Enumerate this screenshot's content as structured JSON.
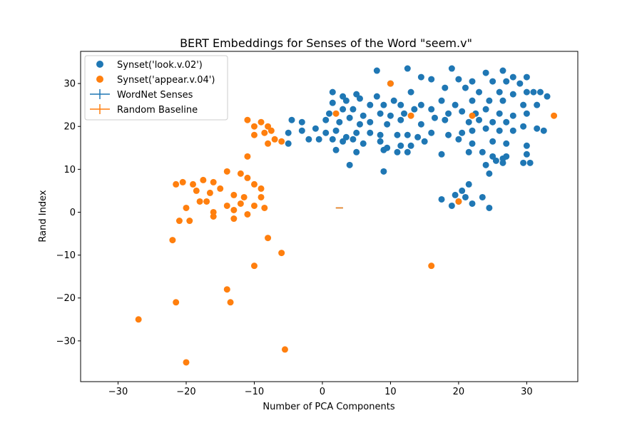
{
  "chart_data": {
    "type": "scatter",
    "title": "BERT Embeddings for Senses of the Word \"seem.v\"",
    "xlabel": "Number of PCA Components",
    "ylabel": "Rand Index",
    "xlim": [
      -35.5,
      37.5
    ],
    "ylim": [
      -39.5,
      37.5
    ],
    "xticks": [
      -30,
      -20,
      -10,
      0,
      10,
      20,
      30
    ],
    "yticks": [
      -30,
      -20,
      -10,
      0,
      10,
      20,
      30
    ],
    "xtick_labels": [
      "−30",
      "−20",
      "−10",
      "0",
      "10",
      "20",
      "30"
    ],
    "ytick_labels": [
      "−30",
      "−20",
      "−10",
      "0",
      "10",
      "20",
      "30"
    ],
    "grid": false,
    "legend_position": "upper-left",
    "colors": {
      "blue": "#1f77b4",
      "orange": "#ff7f0e"
    },
    "series": [
      {
        "name": "Synset('look.v.02')",
        "kind": "scatter",
        "color": "#1f77b4",
        "points": [
          [
            8,
            33
          ],
          [
            12.5,
            33.5
          ],
          [
            19,
            33.5
          ],
          [
            24,
            32.5
          ],
          [
            26.5,
            33
          ],
          [
            28,
            31.5
          ],
          [
            30,
            31.5
          ],
          [
            10,
            30
          ],
          [
            14.5,
            31.5
          ],
          [
            16,
            31
          ],
          [
            20,
            31
          ],
          [
            22,
            30.5
          ],
          [
            25,
            30.5
          ],
          [
            27,
            30.5
          ],
          [
            29,
            30
          ],
          [
            31,
            28
          ],
          [
            32,
            28
          ],
          [
            33,
            27
          ],
          [
            1.5,
            28
          ],
          [
            3,
            27
          ],
          [
            5,
            27.5
          ],
          [
            8,
            27
          ],
          [
            13,
            28
          ],
          [
            18,
            29
          ],
          [
            21,
            29
          ],
          [
            23,
            28
          ],
          [
            26,
            28
          ],
          [
            28,
            27.5
          ],
          [
            30,
            28
          ],
          [
            1.5,
            25.5
          ],
          [
            3.5,
            26
          ],
          [
            5.5,
            26.5
          ],
          [
            7,
            25
          ],
          [
            9,
            25
          ],
          [
            10.5,
            26
          ],
          [
            11.5,
            25
          ],
          [
            14.5,
            25
          ],
          [
            17.5,
            26
          ],
          [
            19.5,
            25
          ],
          [
            22,
            26
          ],
          [
            24.5,
            26
          ],
          [
            26.5,
            26
          ],
          [
            29.5,
            25
          ],
          [
            31.5,
            25
          ],
          [
            1,
            23
          ],
          [
            3,
            24
          ],
          [
            4.5,
            24
          ],
          [
            6,
            22.5
          ],
          [
            8.5,
            23
          ],
          [
            10,
            22.5
          ],
          [
            12,
            23
          ],
          [
            13.5,
            24
          ],
          [
            16,
            24
          ],
          [
            18.5,
            23
          ],
          [
            20.5,
            23.5
          ],
          [
            22.5,
            23
          ],
          [
            24,
            24
          ],
          [
            26,
            23
          ],
          [
            28,
            22.5
          ],
          [
            30,
            23
          ],
          [
            -3,
            21
          ],
          [
            0.5,
            21.5
          ],
          [
            2.5,
            21
          ],
          [
            4,
            22
          ],
          [
            5.5,
            20.5
          ],
          [
            7,
            21
          ],
          [
            9.5,
            20.5
          ],
          [
            11.5,
            21.5
          ],
          [
            14.5,
            20.5
          ],
          [
            16.5,
            22
          ],
          [
            18,
            21.5
          ],
          [
            21.5,
            21
          ],
          [
            23,
            21.5
          ],
          [
            25,
            21
          ],
          [
            27,
            21
          ],
          [
            29.5,
            20
          ],
          [
            31.5,
            19.5
          ],
          [
            -3,
            19
          ],
          [
            -1,
            19.5
          ],
          [
            0.5,
            18.5
          ],
          [
            2,
            19
          ],
          [
            3.5,
            17.5
          ],
          [
            5,
            18.5
          ],
          [
            7,
            18.5
          ],
          [
            8.5,
            18
          ],
          [
            11,
            18
          ],
          [
            12.5,
            18
          ],
          [
            14,
            17.5
          ],
          [
            16,
            18.5
          ],
          [
            18.5,
            18
          ],
          [
            20.5,
            18.5
          ],
          [
            22,
            19
          ],
          [
            24,
            19.5
          ],
          [
            26,
            19
          ],
          [
            28,
            19
          ],
          [
            32.5,
            19
          ],
          [
            -2,
            17
          ],
          [
            -0.5,
            17
          ],
          [
            1.5,
            17
          ],
          [
            3,
            16.5
          ],
          [
            4.5,
            17
          ],
          [
            6,
            16
          ],
          [
            8.5,
            16.5
          ],
          [
            9.5,
            15
          ],
          [
            11.5,
            15.5
          ],
          [
            13,
            15.5
          ],
          [
            15,
            16.5
          ],
          [
            20,
            17
          ],
          [
            22,
            16
          ],
          [
            25,
            16.5
          ],
          [
            27,
            16
          ],
          [
            30,
            15.5
          ],
          [
            2,
            14.5
          ],
          [
            5,
            14
          ],
          [
            9,
            14.5
          ],
          [
            11,
            14
          ],
          [
            12.5,
            14
          ],
          [
            17.5,
            13.5
          ],
          [
            21.5,
            14
          ],
          [
            23.5,
            14
          ],
          [
            25,
            13
          ],
          [
            27,
            13
          ],
          [
            30,
            13.5
          ],
          [
            4,
            11
          ],
          [
            9,
            9.5
          ],
          [
            24,
            11
          ],
          [
            25.5,
            12
          ],
          [
            26.5,
            11.5
          ],
          [
            29.5,
            11.5
          ],
          [
            30.5,
            11.5
          ],
          [
            24.5,
            9
          ],
          [
            26.5,
            12.5
          ],
          [
            -4.5,
            21.5
          ],
          [
            -5,
            18.5
          ],
          [
            -5,
            16
          ],
          [
            21.5,
            6.5
          ],
          [
            20.5,
            5
          ],
          [
            19.5,
            4
          ],
          [
            21,
            3.5
          ],
          [
            20,
            2.5
          ],
          [
            19,
            1.5
          ],
          [
            22,
            2
          ],
          [
            23.5,
            3.5
          ],
          [
            17.5,
            3
          ],
          [
            24.5,
            1
          ]
        ]
      },
      {
        "name": "Synset('appear.v.04')",
        "kind": "scatter",
        "color": "#ff7f0e",
        "points": [
          [
            -11,
            21.5
          ],
          [
            -9,
            21
          ],
          [
            -10,
            20
          ],
          [
            -8,
            20
          ],
          [
            -7.5,
            19
          ],
          [
            -10,
            18
          ],
          [
            -8.5,
            18.5
          ],
          [
            -7,
            17
          ],
          [
            -6,
            16.5
          ],
          [
            -8,
            16
          ],
          [
            10,
            30
          ],
          [
            2,
            23
          ],
          [
            13,
            22.5
          ],
          [
            22,
            22.5
          ],
          [
            34,
            22.5
          ],
          [
            -21.5,
            6.5
          ],
          [
            -20.5,
            7
          ],
          [
            -19,
            6.5
          ],
          [
            -17.5,
            7.5
          ],
          [
            -16,
            7
          ],
          [
            -14,
            9.5
          ],
          [
            -12,
            9
          ],
          [
            -11,
            8
          ],
          [
            -10,
            6.5
          ],
          [
            -9,
            5.5
          ],
          [
            -18.5,
            5
          ],
          [
            -16.5,
            4.5
          ],
          [
            -15,
            5.5
          ],
          [
            -13,
            4
          ],
          [
            -11.5,
            3.5
          ],
          [
            -9,
            3.5
          ],
          [
            -17,
            2.5
          ],
          [
            -14,
            1.5
          ],
          [
            -12,
            2
          ],
          [
            -10,
            1.5
          ],
          [
            -8.5,
            1
          ],
          [
            -16,
            0
          ],
          [
            -13,
            0.5
          ],
          [
            -11,
            -0.5
          ],
          [
            -20,
            1
          ],
          [
            -18,
            2.5
          ],
          [
            -21,
            -2
          ],
          [
            -19.5,
            -2
          ],
          [
            -16,
            -1
          ],
          [
            -13,
            -1.5
          ],
          [
            -8,
            -6
          ],
          [
            -22,
            -6.5
          ],
          [
            -10,
            -12.5
          ],
          [
            -6,
            -9.5
          ],
          [
            16,
            -12.5
          ],
          [
            20,
            2.5
          ],
          [
            -14,
            -18
          ],
          [
            -21.5,
            -21
          ],
          [
            -13.5,
            -21
          ],
          [
            -27,
            -25
          ],
          [
            -20,
            -35
          ],
          [
            -5.5,
            -32
          ],
          [
            -11,
            13
          ]
        ]
      },
      {
        "name": "WordNet Senses",
        "kind": "errorbar",
        "color": "#1f77b4",
        "points": [
          [
            2.5,
            1
          ]
        ]
      },
      {
        "name": "Random Baseline",
        "kind": "errorbar",
        "color": "#ff7f0e",
        "points": [
          [
            2.5,
            1
          ]
        ]
      }
    ]
  }
}
